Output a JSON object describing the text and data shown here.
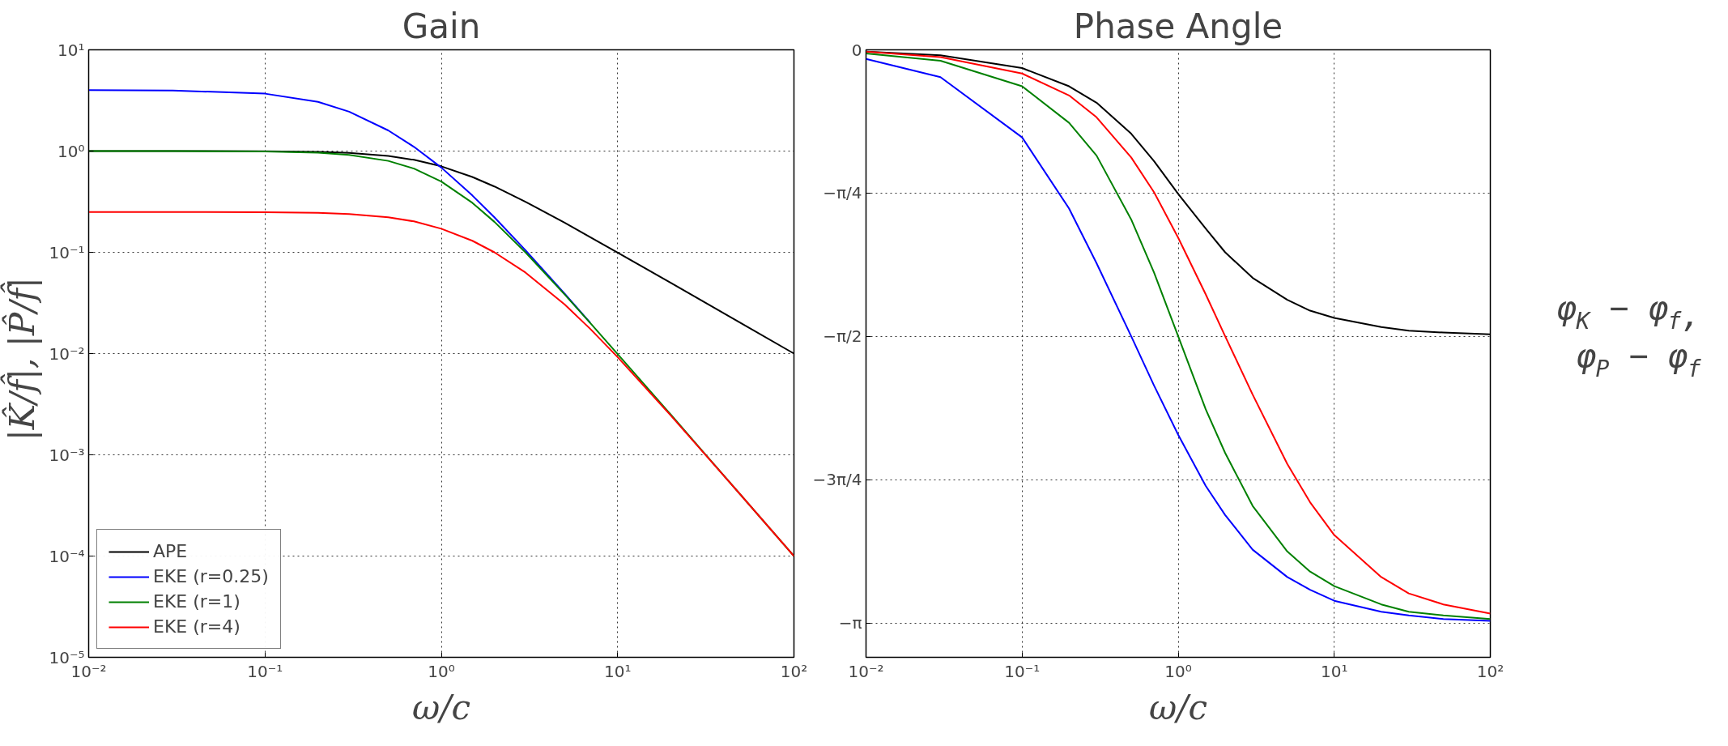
{
  "chart_data": [
    {
      "type": "line",
      "title": "Gain",
      "xlabel": "ω/c",
      "ylabel": "|K̂/f̂|,  |P̂/f̂|",
      "log": "xy",
      "grid": true,
      "legend": "bottom left",
      "line_style": "solid",
      "marker": "none",
      "x": [
        0.01,
        0.03,
        0.1,
        0.2,
        0.3,
        0.5,
        0.7,
        1,
        1.5,
        2,
        3,
        5,
        7,
        10,
        20,
        30,
        50,
        100
      ],
      "xlim": [
        0.01,
        100
      ],
      "xticks": [
        {
          "value": 0.01,
          "label": "10⁻²"
        },
        {
          "value": 0.1,
          "label": "10⁻¹"
        },
        {
          "value": 1,
          "label": "10⁰"
        },
        {
          "value": 10,
          "label": "10¹"
        },
        {
          "value": 100,
          "label": "10²"
        }
      ],
      "ylim": [
        1e-05,
        10
      ],
      "yticks": [
        {
          "value": 1e-05,
          "label": "10⁻⁵"
        },
        {
          "value": 0.0001,
          "label": "10⁻⁴"
        },
        {
          "value": 0.001,
          "label": "10⁻³"
        },
        {
          "value": 0.01,
          "label": "10⁻²"
        },
        {
          "value": 0.1,
          "label": "10⁻¹"
        },
        {
          "value": 1,
          "label": "10⁰"
        },
        {
          "value": 10,
          "label": "10¹"
        }
      ],
      "series": [
        {
          "name": "APE",
          "color": "#000000",
          "values": [
            1.0,
            1.0,
            0.995,
            0.981,
            0.958,
            0.894,
            0.819,
            0.707,
            0.555,
            0.447,
            0.316,
            0.196,
            0.141,
            0.0995,
            0.05,
            0.0333,
            0.02,
            0.01
          ]
        },
        {
          "name": "EKE (r=0.25)",
          "color": "#0000ff",
          "values": [
            4.0,
            3.97,
            3.69,
            3.06,
            2.45,
            1.6,
            1.1,
            0.687,
            0.364,
            0.222,
            0.105,
            0.0391,
            0.0201,
            null,
            null,
            null,
            null,
            null
          ]
        },
        {
          "name": "EKE (r=1)",
          "color": "#008000",
          "values": [
            1.0,
            0.999,
            0.99,
            0.962,
            0.917,
            0.8,
            0.671,
            0.5,
            0.308,
            0.2,
            0.1,
            0.0385,
            0.02,
            0.0099,
            0.0025,
            0.00111,
            0.0004,
            0.0001
          ]
        },
        {
          "name": "EKE (r=4)",
          "color": "#ff0000",
          "values": [
            0.25,
            0.25,
            0.249,
            0.245,
            0.239,
            0.222,
            0.202,
            0.171,
            0.13,
            0.1,
            0.0632,
            0.0306,
            0.0175,
            0.00923,
            0.00245,
            0.0011,
            0.0004,
            0.0001
          ]
        }
      ]
    },
    {
      "type": "line",
      "title": "Phase Angle",
      "xlabel": "ω/c",
      "ylabel": "φ$_{K}$ − φ$_{f}$, φ$_{P}$ − φ$_{f}$",
      "log": "x",
      "grid": true,
      "line_style": "solid",
      "marker": "none",
      "x": [
        0.01,
        0.03,
        0.1,
        0.2,
        0.3,
        0.5,
        0.7,
        1,
        1.5,
        2,
        3,
        5,
        7,
        10,
        20,
        30,
        50,
        100
      ],
      "xlim": [
        0.01,
        100
      ],
      "xticks": [
        {
          "value": 0.01,
          "label": "10⁻²"
        },
        {
          "value": 0.1,
          "label": "10⁻¹"
        },
        {
          "value": 1,
          "label": "10⁰"
        },
        {
          "value": 10,
          "label": "10¹"
        },
        {
          "value": 100,
          "label": "10²"
        }
      ],
      "ylim": [
        -3.33,
        0
      ],
      "yticks": [
        0,
        {
          "value": -0.7854,
          "label": "−π/4"
        },
        {
          "value": -1.5708,
          "label": "−π/2"
        },
        {
          "value": -2.3562,
          "label": "−3π/4"
        },
        {
          "value": -3.1416,
          "label": "−π"
        }
      ],
      "series": [
        {
          "color": "#000000",
          "values": [
            -0.01,
            -0.03,
            -0.1,
            -0.2,
            -0.29,
            -0.46,
            -0.61,
            -0.79,
            -0.98,
            -1.11,
            -1.25,
            -1.37,
            -1.43,
            -1.47,
            -1.52,
            -1.54,
            -1.55,
            -1.56
          ]
        },
        {
          "color": "#0000ff",
          "values": [
            -0.05,
            -0.15,
            -0.48,
            -0.87,
            -1.17,
            -1.57,
            -1.84,
            -2.11,
            -2.39,
            -2.55,
            -2.74,
            -2.89,
            -2.96,
            -3.02,
            -3.08,
            -3.1,
            -3.12,
            -3.13
          ]
        },
        {
          "color": "#008000",
          "values": [
            -0.02,
            -0.06,
            -0.2,
            -0.4,
            -0.58,
            -0.93,
            -1.22,
            -1.57,
            -1.97,
            -2.21,
            -2.5,
            -2.75,
            -2.86,
            -2.94,
            -3.04,
            -3.08,
            -3.1,
            -3.12
          ]
        },
        {
          "color": "#ff0000",
          "values": [
            -0.01,
            -0.04,
            -0.13,
            -0.25,
            -0.37,
            -0.59,
            -0.78,
            -1.03,
            -1.34,
            -1.57,
            -1.89,
            -2.27,
            -2.48,
            -2.66,
            -2.89,
            -2.98,
            -3.04,
            -3.09
          ]
        }
      ]
    }
  ]
}
